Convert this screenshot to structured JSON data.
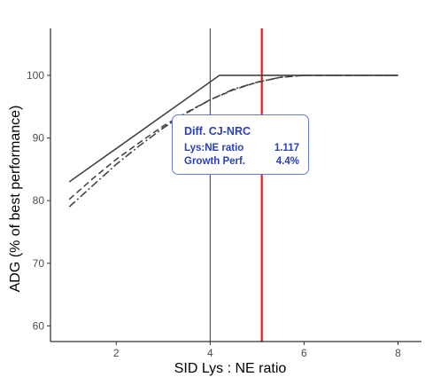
{
  "chart_data": {
    "type": "line",
    "xlabel": "SID Lys : NE ratio",
    "ylabel": "ADG (% of best performance)",
    "xlim": [
      0.6,
      8.5
    ],
    "ylim": [
      57.5,
      107.5
    ],
    "x_ticks": [
      2,
      4,
      6,
      8
    ],
    "y_ticks": [
      60,
      70,
      80,
      90,
      100
    ],
    "grid": false,
    "series": [
      {
        "style": "solid",
        "color": "#444444",
        "x": [
          1.0,
          4.2,
          8.0
        ],
        "y": [
          83.0,
          100.0,
          100.0
        ]
      },
      {
        "style": "dashed",
        "color": "#444444",
        "x": [
          1.0,
          1.5,
          2.0,
          2.5,
          3.0,
          3.5,
          4.0,
          4.5,
          5.0,
          5.5,
          6.0,
          8.0
        ],
        "y": [
          80.2,
          83.5,
          86.6,
          89.3,
          91.9,
          94.1,
          96.1,
          97.7,
          98.9,
          99.7,
          100.0,
          100.0
        ]
      },
      {
        "style": "dashdot",
        "color": "#444444",
        "x": [
          1.0,
          1.5,
          2.0,
          2.5,
          3.0,
          3.5,
          4.0,
          4.5,
          5.0,
          5.5,
          6.0,
          8.0
        ],
        "y": [
          79.0,
          82.4,
          85.8,
          88.8,
          91.6,
          94.0,
          96.1,
          97.8,
          98.9,
          99.7,
          100.0,
          100.0
        ]
      }
    ],
    "vlines": [
      {
        "x": 4.0,
        "color": "#333333"
      },
      {
        "x": 5.1,
        "color": "#e31a1c"
      }
    ]
  },
  "info_box": {
    "title": "Diff. CJ-NRC",
    "rows": [
      {
        "label": "Lys:NE ratio",
        "value": "1.117"
      },
      {
        "label": "Growth Perf.",
        "value": "4.4%"
      }
    ],
    "text_color": "#2b3fb6",
    "border_color": "#5b7fd6"
  }
}
